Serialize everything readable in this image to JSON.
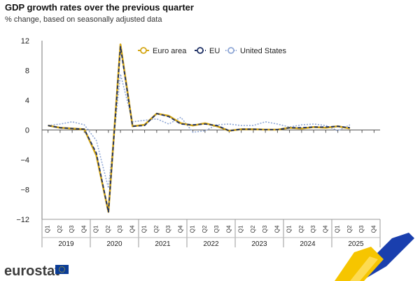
{
  "chart_data": {
    "type": "line",
    "title": "GDP growth rates over the previous quarter",
    "subtitle": "% change, based on seasonally adjusted data",
    "ylim": [
      -12,
      12
    ],
    "yticks": [
      12,
      8,
      4,
      0,
      -4,
      -8,
      -12
    ],
    "quarters": [
      "Q1",
      "Q2",
      "Q3",
      "Q4"
    ],
    "years": [
      "2019",
      "2020",
      "2021",
      "2022",
      "2023",
      "2024",
      "2025"
    ],
    "legend_position": "top",
    "series": [
      {
        "name": "Euro area",
        "color": "#d4a615",
        "style": "solid",
        "values": [
          0.6,
          0.3,
          0.2,
          0.1,
          -3.4,
          -11.0,
          11.5,
          0.5,
          0.7,
          2.2,
          1.9,
          0.9,
          0.6,
          0.9,
          0.5,
          -0.1,
          0.1,
          0.1,
          0.05,
          0.05,
          0.3,
          0.2,
          0.4,
          0.3,
          0.5,
          0.2,
          null,
          null
        ]
      },
      {
        "name": "EU",
        "color": "#1c2e63",
        "style": "dashed",
        "values": [
          0.6,
          0.3,
          0.2,
          0.1,
          -3.1,
          -11.0,
          11.2,
          0.5,
          0.6,
          2.2,
          1.8,
          0.8,
          0.7,
          0.8,
          0.6,
          -0.1,
          0.1,
          0.1,
          0.05,
          0.05,
          0.3,
          0.3,
          0.4,
          0.4,
          0.5,
          0.3,
          null,
          null
        ]
      },
      {
        "name": "United States",
        "color": "#8fa7d6",
        "style": "dotted",
        "values": [
          0.6,
          0.8,
          1.1,
          0.7,
          -1.4,
          -7.8,
          7.5,
          1.1,
          1.3,
          1.5,
          0.8,
          1.7,
          -0.3,
          -0.1,
          0.7,
          0.8,
          0.6,
          0.6,
          1.1,
          0.8,
          0.4,
          0.7,
          0.8,
          0.6,
          -0.1,
          0.7,
          null,
          null
        ]
      }
    ]
  },
  "brand": {
    "logo_text": "eurostat"
  },
  "colors": {
    "axis": "#666666",
    "grid": "#cccccc",
    "flag": "#0a3c96",
    "flag_star": "#ffd400",
    "stripe_yellow": "#f6c500",
    "stripe_blue": "#1a3fae"
  }
}
